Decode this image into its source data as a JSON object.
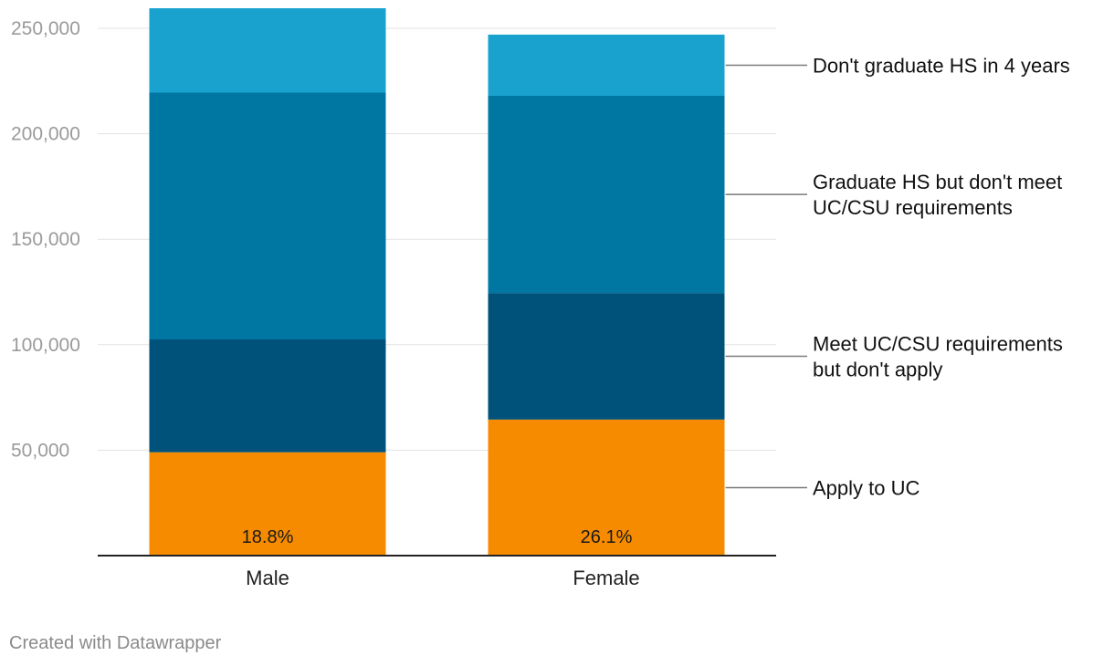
{
  "chart_data": {
    "type": "bar",
    "stacked": true,
    "categories": [
      "Male",
      "Female"
    ],
    "ylim": [
      0,
      260000
    ],
    "yticks": [
      {
        "value": 50000,
        "label": "50,000"
      },
      {
        "value": 100000,
        "label": "100,000"
      },
      {
        "value": 150000,
        "label": "150,000"
      },
      {
        "value": 200000,
        "label": "200,000"
      },
      {
        "value": 250000,
        "label": "250,000"
      }
    ],
    "series": [
      {
        "name": "Apply to UC",
        "legend_lines": [
          "Apply to UC"
        ],
        "color": "#f68b00",
        "values": [
          49000,
          64500
        ],
        "data_labels": [
          "18.8%",
          "26.1%"
        ]
      },
      {
        "name": "Meet UC/CSU requirements but don't apply",
        "legend_lines": [
          "Meet UC/CSU requirements",
          "but don't apply"
        ],
        "color": "#00527a",
        "values": [
          53500,
          60000
        ],
        "data_labels": []
      },
      {
        "name": "Graduate HS but don't meet UC/CSU requirements",
        "legend_lines": [
          "Graduate HS but don't meet",
          "UC/CSU requirements"
        ],
        "color": "#0077a3",
        "values": [
          117000,
          93500
        ],
        "data_labels": []
      },
      {
        "name": "Don't graduate HS in 4 years",
        "legend_lines": [
          "Don't graduate HS in 4 years"
        ],
        "color": "#1aa2cf",
        "values": [
          40000,
          29000
        ],
        "data_labels": []
      }
    ],
    "grid": true,
    "legend_position": "right"
  },
  "footer": {
    "credit": "Created with Datawrapper"
  }
}
